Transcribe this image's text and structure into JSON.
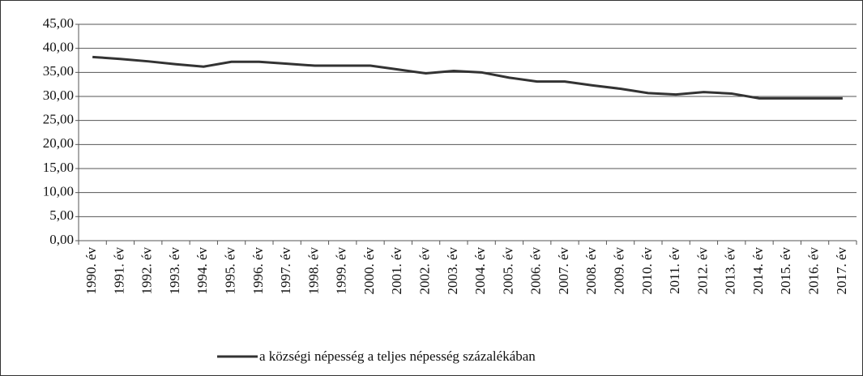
{
  "chart_data": {
    "type": "line",
    "categories": [
      "1990. év",
      "1991. év",
      "1992. év",
      "1993. év",
      "1994. év",
      "1995. év",
      "1996. év",
      "1997. év",
      "1998. év",
      "1999. év",
      "2000. év",
      "2001. év",
      "2002. év",
      "2003. év",
      "2004. év",
      "2005. év",
      "2006. év",
      "2007. év",
      "2008. év",
      "2009. év",
      "2010. év",
      "2011. év",
      "2012. év",
      "2013. év",
      "2014. év",
      "2015. év",
      "2016. év",
      "2017. év"
    ],
    "series": [
      {
        "name": "a községi népesség a teljes népesség százalékában",
        "color": "#333333",
        "values": [
          38.2,
          37.8,
          37.3,
          36.7,
          36.2,
          37.2,
          37.2,
          36.8,
          36.4,
          36.4,
          36.4,
          35.6,
          34.8,
          35.3,
          35.0,
          33.9,
          33.1,
          33.1,
          32.3,
          31.6,
          30.7,
          30.4,
          30.9,
          30.6,
          29.6,
          29.6,
          29.6,
          29.6
        ]
      }
    ],
    "ylim": [
      0,
      45
    ],
    "yticks": [
      {
        "value": 0,
        "label": "0,00"
      },
      {
        "value": 5,
        "label": "5,00"
      },
      {
        "value": 10,
        "label": "10,00"
      },
      {
        "value": 15,
        "label": "15,00"
      },
      {
        "value": 20,
        "label": "20,00"
      },
      {
        "value": 25,
        "label": "25,00"
      },
      {
        "value": 30,
        "label": "30,00"
      },
      {
        "value": 35,
        "label": "35,00"
      },
      {
        "value": 40,
        "label": "40,00"
      },
      {
        "value": 45,
        "label": "45,00"
      }
    ],
    "grid": true,
    "legend": "bottom"
  }
}
